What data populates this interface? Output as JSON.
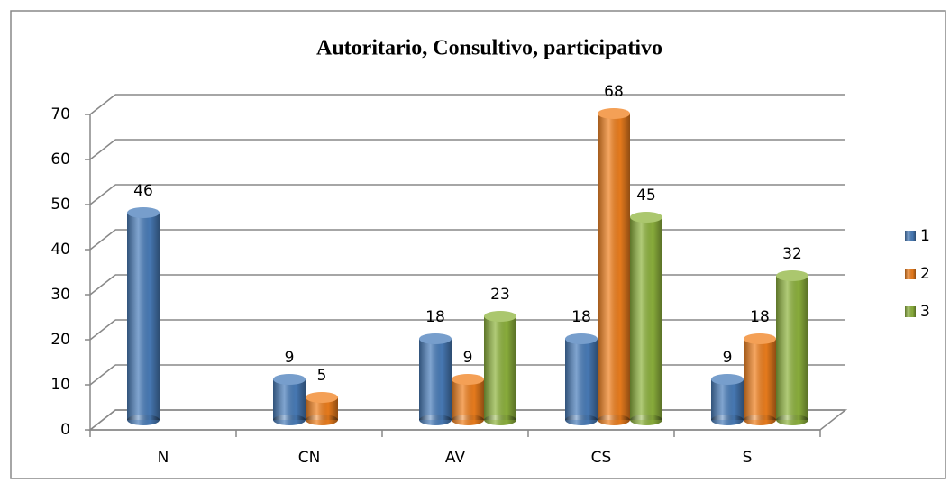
{
  "chart_data": {
    "type": "bar",
    "title": "Autoritario,  Consultivo, participativo",
    "categories": [
      "N",
      "CN",
      "AV",
      "CS",
      "S"
    ],
    "series": [
      {
        "name": "1",
        "color": "#4a7ebb",
        "values": [
          46,
          9,
          18,
          18,
          9
        ]
      },
      {
        "name": "2",
        "color": "#f0801e",
        "values": [
          null,
          5,
          9,
          68,
          18
        ]
      },
      {
        "name": "3",
        "color": "#8fb43e",
        "values": [
          null,
          null,
          23,
          45,
          32
        ]
      }
    ],
    "ylim": [
      0,
      70
    ],
    "yticks": [
      0,
      10,
      20,
      30,
      40,
      50,
      60,
      70
    ],
    "grid": true,
    "legend": "right"
  }
}
